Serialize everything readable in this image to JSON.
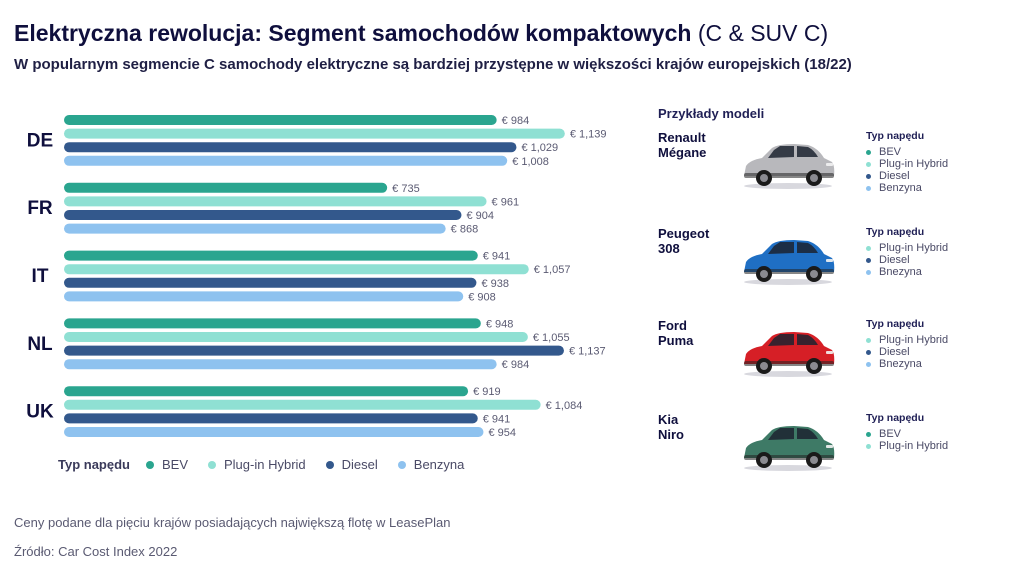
{
  "header": {
    "title_main": "Elektryczna rewolucja: Segment samochodów kompaktowych",
    "title_light": "(C & SUV C)",
    "subtitle": "W popularnym segmencie C samochody elektryczne są bardziej przystępne w większości krajów europejskich (18/22)"
  },
  "colors": {
    "BEV": "#2aa58f",
    "Plug-in Hybrid": "#8fe0d3",
    "Diesel": "#33588c",
    "Benzyna": "#8ec2ef"
  },
  "chart_data": {
    "type": "bar",
    "orientation": "horizontal",
    "categories": [
      "DE",
      "FR",
      "IT",
      "NL",
      "UK"
    ],
    "series": [
      {
        "name": "BEV",
        "values": [
          984,
          735,
          941,
          948,
          919
        ],
        "labels": [
          "€ 984",
          "€ 735",
          "€ 941",
          "€ 948",
          "€ 919"
        ]
      },
      {
        "name": "Plug-in Hybrid",
        "values": [
          1139,
          961,
          1057,
          1055,
          1084
        ],
        "labels": [
          "€ 1,139",
          "€ 961",
          "€ 1,057",
          "€ 1,055",
          "€ 1,084"
        ]
      },
      {
        "name": "Diesel",
        "values": [
          1029,
          904,
          938,
          1137,
          941
        ],
        "labels": [
          "€ 1,029",
          "€ 904",
          "€ 938",
          "€ 1,137",
          "€ 941"
        ]
      },
      {
        "name": "Benzyna",
        "values": [
          1008,
          868,
          908,
          984,
          954
        ],
        "labels": [
          "€ 1,008",
          "€ 868",
          "€ 908",
          "€ 984",
          "€ 954"
        ]
      }
    ],
    "legend_title": "Typ napędu",
    "legend_position": "bottom"
  },
  "notes": {
    "footnote": "Ceny podane dla pięciu krajów posiadających największą flotę w LeasePlan",
    "source": "Źródło: Car Cost Index 2022"
  },
  "models": {
    "title": "Przykłady modeli",
    "items": [
      {
        "name": "Renault\nMégane",
        "car_color": "#b8b8bc",
        "types_title": "Typ napędu",
        "types": [
          "BEV",
          "Plug-in Hybrid",
          "Diesel",
          "Benzyna"
        ]
      },
      {
        "name": "Peugeot\n308",
        "car_color": "#1f6fc4",
        "types_title": "Typ napędu",
        "types": [
          "Plug-in Hybrid",
          "Diesel",
          "Bnezyna"
        ]
      },
      {
        "name": "Ford\nPuma",
        "car_color": "#d61f26",
        "types_title": "Typ napędu",
        "types": [
          "Plug-in Hybrid",
          "Diesel",
          "Bnezyna"
        ]
      },
      {
        "name": "Kia\nNiro",
        "car_color": "#3e7a66",
        "types_title": "Typ napędu",
        "types": [
          "BEV",
          "Plug-in Hybrid"
        ]
      }
    ]
  }
}
